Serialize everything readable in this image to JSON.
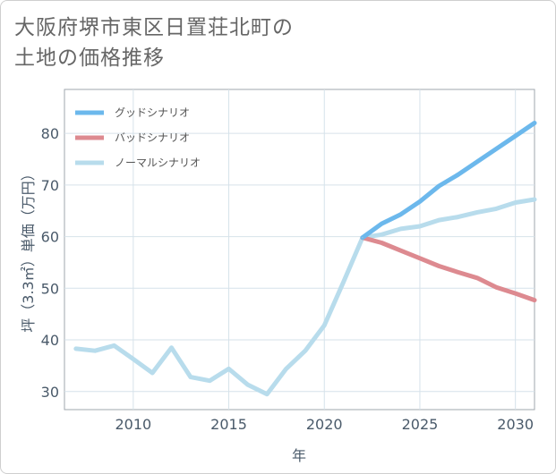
{
  "title_lines": [
    "大阪府堺市東区日置荘北町の",
    "土地の価格推移"
  ],
  "chart_data": {
    "type": "line",
    "title": "大阪府堺市東区日置荘北町の土地の価格推移",
    "xlabel": "年",
    "ylabel": "坪（3.3㎡）単価（万円）",
    "xlim": [
      2006.4,
      2031
    ],
    "ylim": [
      26.5,
      88.5
    ],
    "xticks": [
      2010,
      2015,
      2020,
      2025,
      2030
    ],
    "yticks": [
      30,
      40,
      50,
      60,
      70,
      80
    ],
    "grid": true,
    "legend_position": "top-left",
    "series": [
      {
        "name": "グッドシナリオ",
        "color": "#6cb8ec",
        "x": [
          2022,
          2023,
          2024,
          2025,
          2026,
          2027,
          2028,
          2029,
          2030,
          2031
        ],
        "values": [
          59.8,
          62.5,
          64.3,
          66.8,
          69.8,
          72.0,
          74.5,
          77.0,
          79.5,
          82.0
        ]
      },
      {
        "name": "バッドシナリオ",
        "color": "#dd8a90",
        "x": [
          2022,
          2023,
          2024,
          2025,
          2026,
          2027,
          2028,
          2029,
          2030,
          2031
        ],
        "values": [
          59.8,
          58.8,
          57.3,
          55.8,
          54.3,
          53.1,
          52.0,
          50.2,
          49.0,
          47.7
        ]
      },
      {
        "name": "ノーマルシナリオ",
        "color": "#b8dcec",
        "x": [
          2007,
          2008,
          2009,
          2010,
          2011,
          2012,
          2013,
          2014,
          2015,
          2016,
          2017,
          2018,
          2019,
          2020,
          2021,
          2022,
          2023,
          2024,
          2025,
          2026,
          2027,
          2028,
          2029,
          2030,
          2031
        ],
        "values": [
          38.3,
          37.9,
          38.9,
          36.3,
          33.6,
          38.5,
          32.8,
          32.1,
          34.4,
          31.3,
          29.5,
          34.4,
          37.9,
          42.8,
          51.2,
          59.8,
          60.4,
          61.5,
          62.0,
          63.2,
          63.8,
          64.7,
          65.4,
          66.6,
          67.2
        ]
      }
    ]
  }
}
